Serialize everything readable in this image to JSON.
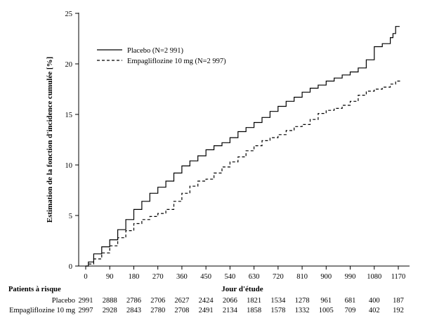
{
  "chart_data": {
    "type": "line",
    "step": true,
    "xlabel": "Jour d'étude",
    "ylabel": "Estimation de la fonction d'incidence cumulée [%]",
    "xlim": [
      0,
      1215
    ],
    "ylim": [
      0,
      25
    ],
    "xticks": [
      0,
      90,
      180,
      270,
      360,
      450,
      540,
      630,
      720,
      810,
      900,
      990,
      1080,
      1170
    ],
    "yticks": [
      0,
      5,
      10,
      15,
      20,
      25
    ],
    "grid": false,
    "legend_position": "top-left",
    "series": [
      {
        "name": "Placebo (N=2 991)",
        "dash": "solid",
        "x": [
          0,
          10,
          30,
          60,
          90,
          120,
          150,
          180,
          210,
          240,
          270,
          300,
          330,
          360,
          390,
          420,
          450,
          480,
          510,
          540,
          570,
          600,
          630,
          660,
          690,
          720,
          750,
          780,
          810,
          840,
          870,
          900,
          930,
          960,
          990,
          1020,
          1050,
          1080,
          1110,
          1140,
          1150,
          1160,
          1175
        ],
        "y": [
          0,
          0.4,
          1.2,
          1.9,
          2.6,
          3.6,
          4.6,
          5.6,
          6.4,
          7.2,
          7.8,
          8.4,
          9.2,
          9.9,
          10.4,
          10.9,
          11.5,
          11.9,
          12.2,
          12.7,
          13.3,
          13.7,
          14.2,
          14.7,
          15.3,
          15.8,
          16.3,
          16.7,
          17.2,
          17.6,
          17.9,
          18.3,
          18.6,
          18.9,
          19.2,
          19.6,
          20.4,
          21.7,
          22.0,
          22.6,
          23.0,
          23.7,
          23.7
        ]
      },
      {
        "name": "Empagliflozine 10 mg (N=2 997)",
        "dash": "dashed",
        "x": [
          0,
          10,
          30,
          60,
          90,
          120,
          150,
          180,
          210,
          240,
          270,
          300,
          330,
          360,
          390,
          420,
          450,
          480,
          510,
          540,
          570,
          600,
          630,
          660,
          690,
          720,
          750,
          780,
          810,
          840,
          870,
          900,
          930,
          960,
          990,
          1020,
          1050,
          1080,
          1110,
          1140,
          1160,
          1180
        ],
        "y": [
          0,
          0.2,
          0.7,
          1.3,
          2.0,
          2.8,
          3.5,
          4.2,
          4.6,
          4.9,
          5.2,
          5.6,
          6.4,
          7.2,
          7.9,
          8.4,
          8.6,
          9.2,
          9.8,
          10.3,
          10.8,
          11.4,
          11.9,
          12.4,
          12.7,
          13.0,
          13.4,
          13.8,
          14.0,
          14.5,
          15.1,
          15.4,
          15.6,
          15.9,
          16.3,
          16.9,
          17.3,
          17.5,
          17.7,
          18.0,
          18.3,
          18.4
        ]
      }
    ]
  },
  "risk_table": {
    "header": "Patients à risque",
    "rows": [
      {
        "label": "Placebo",
        "values": [
          "2991",
          "2888",
          "2786",
          "2706",
          "2627",
          "2424",
          "2066",
          "1821",
          "1534",
          "1278",
          "961",
          "681",
          "400",
          "187"
        ]
      },
      {
        "label": "Empagliflozine 10 mg",
        "values": [
          "2997",
          "2928",
          "2843",
          "2780",
          "2708",
          "2491",
          "2134",
          "1858",
          "1578",
          "1332",
          "1005",
          "709",
          "402",
          "192"
        ]
      }
    ]
  }
}
